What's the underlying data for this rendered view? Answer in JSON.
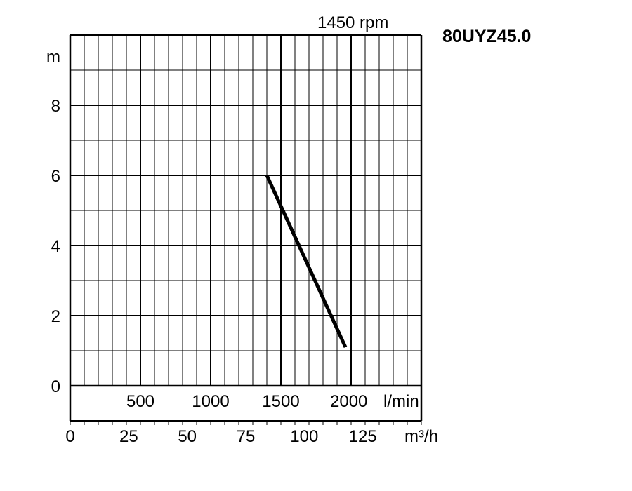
{
  "chart_data": {
    "type": "line",
    "title": "80UYZ45.0",
    "subtitle": "1450 rpm",
    "ylabel": "m",
    "ylim": [
      0,
      10
    ],
    "y_ticks": [
      "0",
      "2",
      "4",
      "6",
      "8"
    ],
    "x_axis_primary": {
      "unit_label": "m³/h",
      "range": [
        0,
        150
      ],
      "ticks": [
        "0",
        "25",
        "50",
        "75",
        "100",
        "125"
      ]
    },
    "x_axis_secondary": {
      "unit_label": "l/min",
      "ticks": [
        "500",
        "1000",
        "1500",
        "2000"
      ]
    },
    "grid": true,
    "series": [
      {
        "x": [
          84,
          117.6
        ],
        "y": [
          6.0,
          1.1
        ]
      }
    ]
  }
}
